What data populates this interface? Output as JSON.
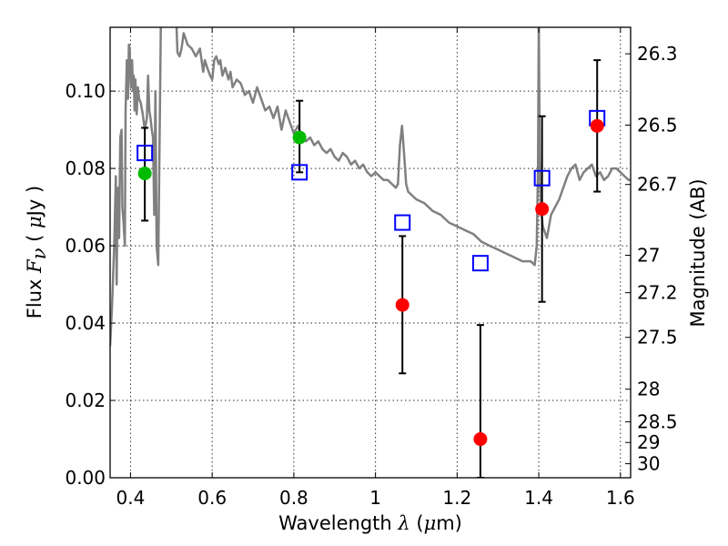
{
  "chart_data": {
    "type": "scatter",
    "xlabel": {
      "pre": "Wavelength  ",
      "sym": "λ",
      "mid": " (",
      "mu": "μ",
      "post": "m)"
    },
    "ylabel": {
      "pre": "Flux  ",
      "sym": "F",
      "sub": "ν",
      "mid": "  (  ",
      "mu": "μ",
      "post": "Jy )"
    },
    "y2label": "Magnitude (AB)",
    "xlim": [
      0.35,
      1.625
    ],
    "ylim": [
      0.0,
      0.1165
    ],
    "xticks": [
      {
        "v": 0.4,
        "label": "0.4"
      },
      {
        "v": 0.6,
        "label": "0.6"
      },
      {
        "v": 0.8,
        "label": "0.8"
      },
      {
        "v": 1.0,
        "label": "1"
      },
      {
        "v": 1.2,
        "label": "1.2"
      },
      {
        "v": 1.4,
        "label": "1.4"
      },
      {
        "v": 1.6,
        "label": "1.6"
      }
    ],
    "yticks": [
      {
        "v": 0.0,
        "label": "0.00"
      },
      {
        "v": 0.02,
        "label": "0.02"
      },
      {
        "v": 0.04,
        "label": "0.04"
      },
      {
        "v": 0.06,
        "label": "0.06"
      },
      {
        "v": 0.08,
        "label": "0.08"
      },
      {
        "v": 0.1,
        "label": "0.10"
      }
    ],
    "magticks": [
      {
        "m": 26.3,
        "label": "26.3"
      },
      {
        "m": 26.5,
        "label": "26.5"
      },
      {
        "m": 26.7,
        "label": "26.7"
      },
      {
        "m": 27.0,
        "label": "27"
      },
      {
        "m": 27.2,
        "label": "27.2"
      },
      {
        "m": 27.5,
        "label": "27.5"
      },
      {
        "m": 28.0,
        "label": "28"
      },
      {
        "m": 28.5,
        "label": "28.5"
      },
      {
        "m": 29.0,
        "label": "29"
      },
      {
        "m": 30.0,
        "label": "30"
      }
    ],
    "grid": true,
    "colors": {
      "model": "#808080",
      "observed": "#ff0000",
      "observed_alt": "#00bb00",
      "synthetic": "#0000ff",
      "error": "#000000"
    },
    "model_spectrum": {
      "x": [
        0.35,
        0.355,
        0.36,
        0.364,
        0.366,
        0.368,
        0.37,
        0.372,
        0.375,
        0.378,
        0.38,
        0.383,
        0.386,
        0.388,
        0.391,
        0.394,
        0.396,
        0.398,
        0.401,
        0.404,
        0.406,
        0.408,
        0.41,
        0.412,
        0.415,
        0.418,
        0.421,
        0.425,
        0.43,
        0.435,
        0.44,
        0.443,
        0.446,
        0.449,
        0.452,
        0.455,
        0.458,
        0.461,
        0.464,
        0.468,
        0.475,
        0.49,
        0.5,
        0.51,
        0.515,
        0.52,
        0.525,
        0.53,
        0.54,
        0.55,
        0.56,
        0.57,
        0.578,
        0.582,
        0.588,
        0.595,
        0.6,
        0.605,
        0.61,
        0.616,
        0.62,
        0.625,
        0.632,
        0.64,
        0.645,
        0.65,
        0.66,
        0.67,
        0.68,
        0.69,
        0.7,
        0.71,
        0.72,
        0.73,
        0.74,
        0.75,
        0.76,
        0.77,
        0.78,
        0.79,
        0.8,
        0.81,
        0.82,
        0.83,
        0.84,
        0.85,
        0.86,
        0.87,
        0.88,
        0.89,
        0.9,
        0.91,
        0.92,
        0.93,
        0.94,
        0.95,
        0.96,
        0.97,
        0.98,
        0.99,
        1.0,
        1.01,
        1.02,
        1.03,
        1.04,
        1.05,
        1.055,
        1.06,
        1.065,
        1.07,
        1.075,
        1.08,
        1.1,
        1.12,
        1.14,
        1.16,
        1.18,
        1.2,
        1.22,
        1.24,
        1.26,
        1.28,
        1.3,
        1.32,
        1.34,
        1.36,
        1.38,
        1.39,
        1.395,
        1.398,
        1.4,
        1.402,
        1.405,
        1.41,
        1.42,
        1.43,
        1.44,
        1.45,
        1.46,
        1.47,
        1.48,
        1.49,
        1.5,
        1.51,
        1.52,
        1.53,
        1.54,
        1.55,
        1.56,
        1.57,
        1.58,
        1.59,
        1.6,
        1.61,
        1.62,
        1.625
      ],
      "y": [
        0.034,
        0.045,
        0.06,
        0.078,
        0.05,
        0.072,
        0.075,
        0.062,
        0.088,
        0.09,
        0.07,
        0.066,
        0.06,
        0.095,
        0.108,
        0.098,
        0.112,
        0.111,
        0.101,
        0.108,
        0.1,
        0.104,
        0.095,
        0.103,
        0.094,
        0.101,
        0.098,
        0.097,
        0.094,
        0.09,
        0.093,
        0.104,
        0.095,
        0.093,
        0.09,
        0.088,
        0.068,
        0.1,
        0.06,
        0.055,
        0.125,
        0.118,
        0.122,
        0.125,
        0.11,
        0.109,
        0.111,
        0.115,
        0.112,
        0.111,
        0.109,
        0.111,
        0.105,
        0.108,
        0.106,
        0.104,
        0.103,
        0.108,
        0.109,
        0.107,
        0.108,
        0.104,
        0.106,
        0.103,
        0.105,
        0.101,
        0.103,
        0.102,
        0.099,
        0.1,
        0.097,
        0.101,
        0.098,
        0.095,
        0.096,
        0.093,
        0.096,
        0.09,
        0.095,
        0.092,
        0.089,
        0.091,
        0.088,
        0.087,
        0.088,
        0.086,
        0.087,
        0.085,
        0.084,
        0.085,
        0.083,
        0.082,
        0.084,
        0.083,
        0.081,
        0.082,
        0.08,
        0.081,
        0.079,
        0.078,
        0.079,
        0.078,
        0.077,
        0.077,
        0.076,
        0.075,
        0.076,
        0.086,
        0.091,
        0.084,
        0.076,
        0.074,
        0.072,
        0.071,
        0.069,
        0.068,
        0.066,
        0.065,
        0.064,
        0.063,
        0.061,
        0.06,
        0.059,
        0.058,
        0.057,
        0.056,
        0.056,
        0.055,
        0.06,
        0.08,
        0.12,
        0.083,
        0.07,
        0.065,
        0.062,
        0.068,
        0.07,
        0.072,
        0.075,
        0.078,
        0.08,
        0.081,
        0.077,
        0.079,
        0.08,
        0.081,
        0.078,
        0.079,
        0.077,
        0.078,
        0.08,
        0.08,
        0.079,
        0.078,
        0.077,
        0.077
      ]
    },
    "observed": [
      {
        "x": 0.435,
        "y": 0.0787,
        "err_low": 0.0665,
        "err_high": 0.0905,
        "color": "green"
      },
      {
        "x": 0.814,
        "y": 0.088,
        "err_low": 0.079,
        "err_high": 0.0975,
        "color": "green"
      },
      {
        "x": 1.066,
        "y": 0.0447,
        "err_low": 0.027,
        "err_high": 0.0625,
        "color": "red"
      },
      {
        "x": 1.257,
        "y": 0.01,
        "err_low": 0.0,
        "err_high": 0.0395,
        "color": "red"
      },
      {
        "x": 1.408,
        "y": 0.0695,
        "err_low": 0.0455,
        "err_high": 0.0935,
        "color": "red"
      },
      {
        "x": 1.543,
        "y": 0.091,
        "err_low": 0.074,
        "err_high": 0.108,
        "color": "red"
      }
    ],
    "synthetic": [
      {
        "x": 0.435,
        "y": 0.084
      },
      {
        "x": 0.814,
        "y": 0.079
      },
      {
        "x": 1.066,
        "y": 0.066
      },
      {
        "x": 1.257,
        "y": 0.0555
      },
      {
        "x": 1.408,
        "y": 0.0775
      },
      {
        "x": 1.543,
        "y": 0.093
      }
    ]
  }
}
